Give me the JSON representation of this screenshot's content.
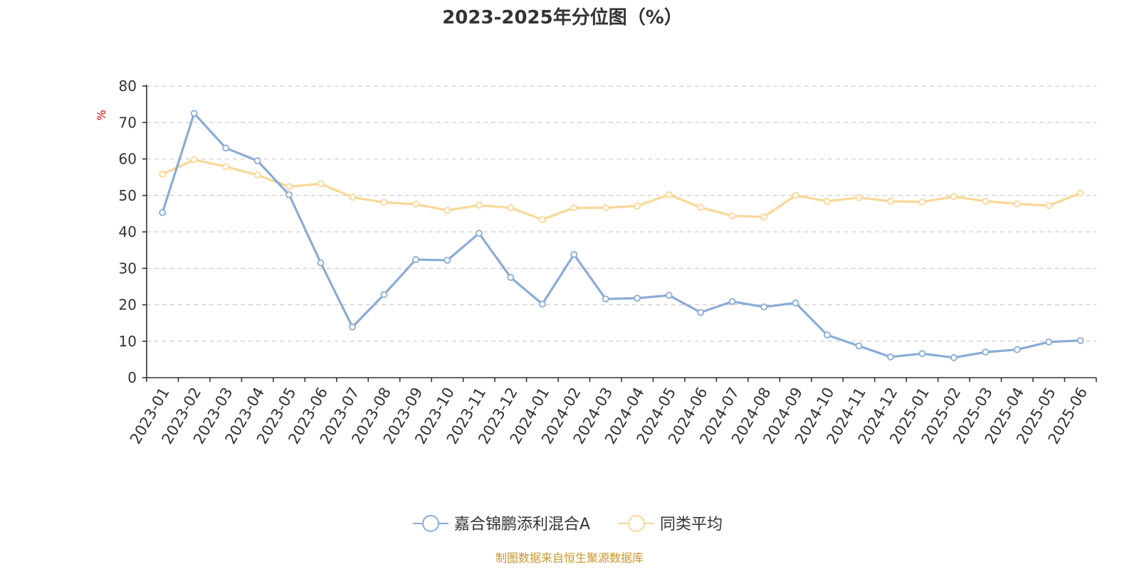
{
  "colors": {
    "series_a": "#8aabd6",
    "series_b": "#f9d796",
    "source": "#c8962b",
    "unit": "#ff0000"
  },
  "chart_data": {
    "type": "line",
    "title": "2023-2025年分位图（%）",
    "ylabel": "%",
    "ylim": [
      0,
      80
    ],
    "yticks": [
      0,
      10,
      20,
      30,
      40,
      50,
      60,
      70,
      80
    ],
    "grid": true,
    "legend_position": "bottom-center",
    "categories": [
      "2023-01",
      "2023-02",
      "2023-03",
      "2023-04",
      "2023-05",
      "2023-06",
      "2023-07",
      "2023-08",
      "2023-09",
      "2023-10",
      "2023-11",
      "2023-12",
      "2024-01",
      "2024-02",
      "2024-03",
      "2024-04",
      "2024-05",
      "2024-06",
      "2024-07",
      "2024-08",
      "2024-09",
      "2024-10",
      "2024-11",
      "2024-12",
      "2025-01",
      "2025-02",
      "2025-03",
      "2025-04",
      "2025-05",
      "2025-06"
    ],
    "series": [
      {
        "name": "嘉合锦鹏添利混合A",
        "color": "#8aabd6",
        "values": [
          45.3,
          72.5,
          63.0,
          59.5,
          50.2,
          31.5,
          13.9,
          22.8,
          32.4,
          32.2,
          39.6,
          27.5,
          20.2,
          33.8,
          21.6,
          21.8,
          22.6,
          17.9,
          20.9,
          19.4,
          20.5,
          11.7,
          8.7,
          5.7,
          6.6,
          5.5,
          7.0,
          7.7,
          9.8,
          10.2
        ]
      },
      {
        "name": "同类平均",
        "color": "#f9d796",
        "values": [
          55.8,
          59.8,
          57.9,
          55.6,
          52.4,
          53.2,
          49.5,
          48.1,
          47.6,
          45.9,
          47.3,
          46.6,
          43.4,
          46.6,
          46.6,
          47.1,
          50.2,
          46.7,
          44.4,
          44.1,
          50.0,
          48.4,
          49.4,
          48.4,
          48.2,
          49.7,
          48.4,
          47.7,
          47.2,
          50.6
        ]
      }
    ]
  },
  "footer": {
    "source_text": "制图数据来自恒生聚源数据库"
  }
}
